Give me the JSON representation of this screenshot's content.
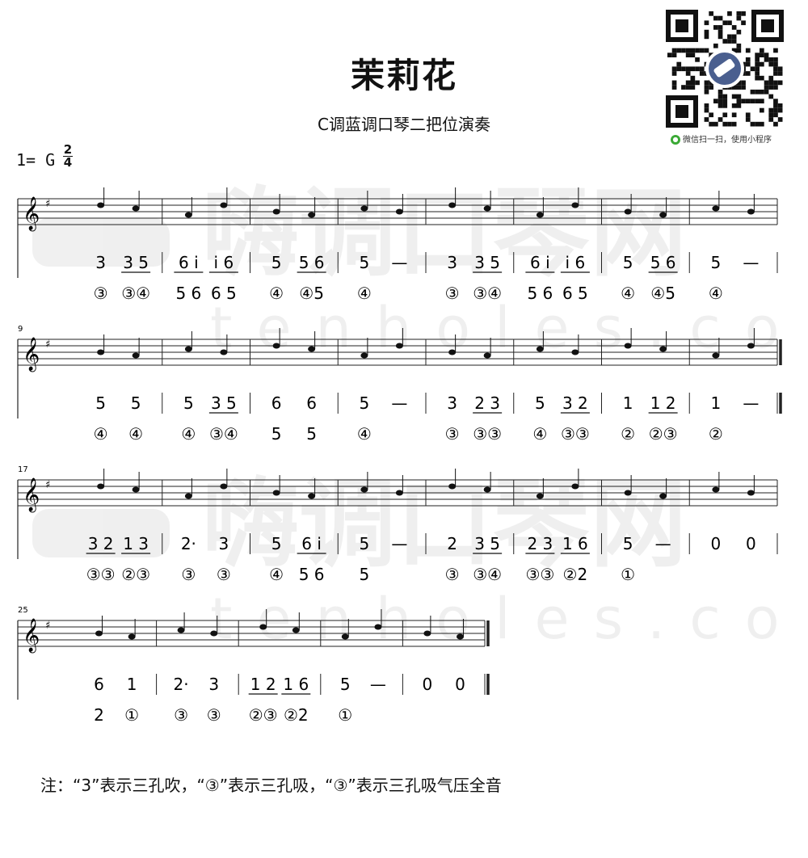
{
  "title": "茉莉花",
  "subtitle": "C调蓝调口琴二把位演奏",
  "key": "1= G",
  "time_signature": {
    "top": "2",
    "bottom": "4"
  },
  "qr_caption": "微信扫一扫，使用小程序",
  "watermark": {
    "text_cn": "嗨调口琴网",
    "text_en": "tenholes.com"
  },
  "note": "注：“3”表示三孔吹，“③”表示三孔吸，“③”表示三孔吸气压全音",
  "measure_numbers": [
    "9",
    "17",
    "25"
  ],
  "systems": [
    {
      "measures": [
        [
          "3",
          "3 5"
        ],
        [
          "6 i",
          "i 6"
        ],
        [
          "5",
          "5 6"
        ],
        [
          "5",
          "—"
        ],
        [
          "3",
          "3 5"
        ],
        [
          "6 i",
          "i 6"
        ],
        [
          "5",
          "5 6"
        ],
        [
          "5",
          "—"
        ]
      ],
      "holes": [
        [
          "③",
          "③④"
        ],
        [
          "5 6",
          "6 5"
        ],
        [
          "④",
          "④5"
        ],
        [
          "④"
        ],
        [
          "③",
          "③④"
        ],
        [
          "5 6",
          "6 5"
        ],
        [
          "④",
          "④5"
        ],
        [
          "④"
        ]
      ]
    },
    {
      "measures": [
        [
          "5",
          "5"
        ],
        [
          "5",
          "3 5"
        ],
        [
          "6",
          "6"
        ],
        [
          "5",
          "—"
        ],
        [
          "3",
          "2 3"
        ],
        [
          "5",
          "3 2"
        ],
        [
          "1",
          "1 2"
        ],
        [
          "1",
          "—"
        ]
      ],
      "holes": [
        [
          "④",
          "④"
        ],
        [
          "④",
          "③④"
        ],
        [
          "5",
          "5"
        ],
        [
          "④"
        ],
        [
          "③",
          "③③"
        ],
        [
          "④",
          "③③"
        ],
        [
          "②",
          "②③"
        ],
        [
          "②"
        ]
      ]
    },
    {
      "measures": [
        [
          "3 2",
          "1 3"
        ],
        [
          "2·",
          "3"
        ],
        [
          "5",
          "6 i"
        ],
        [
          "5",
          "—"
        ],
        [
          "2",
          "3 5"
        ],
        [
          "2 3",
          "1 6"
        ],
        [
          "5",
          "—"
        ],
        [
          "0",
          "0"
        ]
      ],
      "holes": [
        [
          "③③",
          "②③"
        ],
        [
          "③",
          "③"
        ],
        [
          "④",
          "5 6"
        ],
        [
          "5"
        ],
        [
          "③",
          "③④"
        ],
        [
          "③③",
          "②2"
        ],
        [
          "①"
        ],
        []
      ]
    },
    {
      "measures": [
        [
          "6",
          "1"
        ],
        [
          "2·",
          "3"
        ],
        [
          "1 2",
          "1 6"
        ],
        [
          "5",
          "—"
        ],
        [
          "0",
          "0"
        ]
      ],
      "holes": [
        [
          "2",
          "①"
        ],
        [
          "③",
          "③"
        ],
        [
          "②③",
          "②2"
        ],
        [
          "①"
        ],
        []
      ]
    }
  ]
}
